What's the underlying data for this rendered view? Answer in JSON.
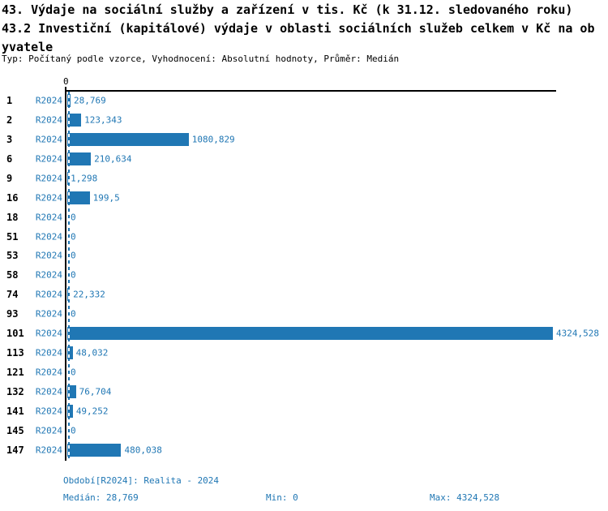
{
  "title": {
    "line1": "43. Výdaje na sociální služby a zařízení v tis. Kč (k 31.12. sledovaného roku)",
    "line2": "43.2 Investiční (kapitálové) výdaje v oblasti sociálních služeb celkem v Kč na ob",
    "line3": "yvatele",
    "meta": "Typ: Počítaný podle vzorce, Vyhodnocení: Absolutní hodnoty, Průměr: Medián"
  },
  "axis_zero_label": "0",
  "colors": {
    "blue": "#2077b4",
    "axis": "#000000",
    "background": "#ffffff"
  },
  "footer": {
    "period_line": "Období[R2024]: Realita - 2024",
    "median_label": "Medián: 28,769",
    "min_label": "Min: 0",
    "max_label": "Max: 4324,528"
  },
  "chart_data": {
    "type": "bar",
    "orientation": "horizontal",
    "title": "43. Výdaje na sociální služby a zařízení v tis. Kč (k 31.12. sledovaného roku)",
    "subtitle": "43.2 Investiční (kapitálové) výdaje v oblasti sociálních služeb celkem v Kč na obyvatele",
    "meta": "Typ: Počítaný podle vzorce, Vyhodnocení: Absolutní hodnoty, Průměr: Medián",
    "categories": [
      "1",
      "2",
      "3",
      "6",
      "9",
      "16",
      "18",
      "51",
      "53",
      "58",
      "74",
      "93",
      "101",
      "113",
      "121",
      "132",
      "141",
      "145",
      "147"
    ],
    "series": [
      {
        "name": "R2024",
        "values": [
          28.769,
          123.343,
          1080.829,
          210.634,
          1.298,
          199.5,
          0,
          0,
          0,
          0,
          22.332,
          0,
          4324.528,
          48.032,
          0,
          76.704,
          49.252,
          0,
          480.038
        ]
      }
    ],
    "value_labels": [
      "28,769",
      "123,343",
      "1080,829",
      "210,634",
      "1,298",
      "199,5",
      "0",
      "0",
      "0",
      "0",
      "22,332",
      "0",
      "4324,528",
      "48,032",
      "0",
      "76,704",
      "49,252",
      "0",
      "480,038"
    ],
    "xlim": [
      0,
      4324.528
    ],
    "grid": false,
    "legend": false,
    "median": 28.769,
    "min": 0,
    "max": 4324.528,
    "period": "Realita - 2024",
    "median_line": "dashed vertical at median value"
  }
}
